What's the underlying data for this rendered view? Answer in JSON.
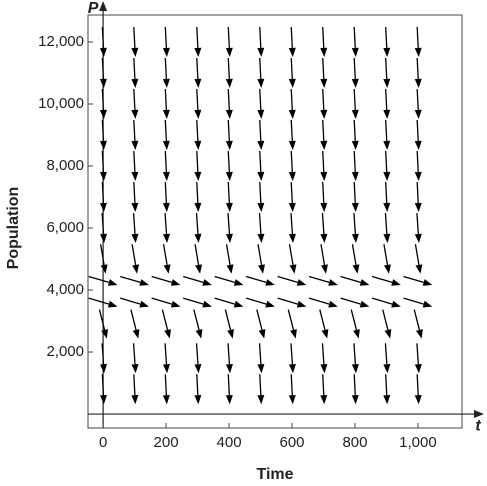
{
  "chart_data": {
    "type": "direction_field",
    "xlabel": "Time",
    "ylabel": "Population",
    "x_axis_name": "t",
    "y_axis_name": "P",
    "xlim": [
      -48,
      1140
    ],
    "ylim": [
      -450,
      12870
    ],
    "xticks": [
      0,
      200,
      400,
      600,
      800,
      {
        "value": 1000,
        "label": "1,000"
      }
    ],
    "yticks": [
      {
        "value": 2000,
        "label": "2,000"
      },
      {
        "value": 4000,
        "label": "4,000"
      },
      {
        "value": 6000,
        "label": "6,000"
      },
      {
        "value": 8000,
        "label": "8,000"
      },
      {
        "value": 10000,
        "label": "10,000"
      },
      {
        "value": 12000,
        "label": "12,000"
      }
    ],
    "x": [
      0,
      100,
      200,
      300,
      400,
      500,
      600,
      700,
      800,
      900,
      1000
    ],
    "rows": [
      {
        "y": 12000,
        "slope": -200
      },
      {
        "y": 11000,
        "slope": -200
      },
      {
        "y": 10000,
        "slope": -200
      },
      {
        "y": 9000,
        "slope": -200
      },
      {
        "y": 8000,
        "slope": -200
      },
      {
        "y": 7000,
        "slope": -200
      },
      {
        "y": 6000,
        "slope": -150
      },
      {
        "y": 5000,
        "slope": -60
      },
      {
        "y": 4300,
        "slope": -3
      },
      {
        "y": 3600,
        "slope": -3
      },
      {
        "y": 2900,
        "slope": -40
      },
      {
        "y": 1800,
        "slope": -150
      },
      {
        "y": 800,
        "slope": -200
      }
    ],
    "color": "#000000"
  }
}
